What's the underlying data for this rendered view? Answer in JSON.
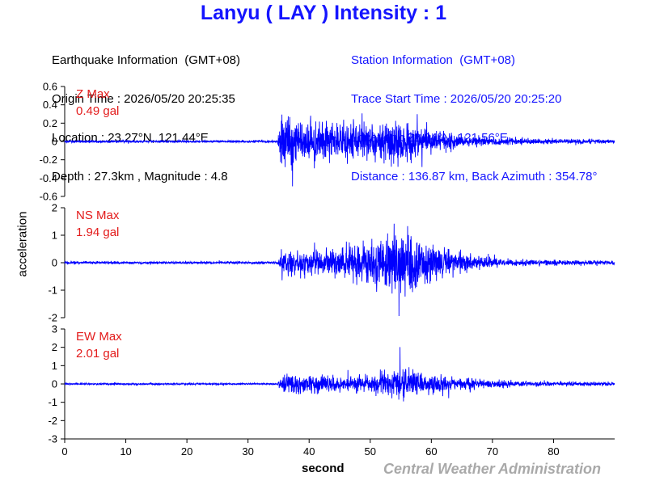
{
  "header": {
    "title": "Lanyu ( LAY ) Intensity : 1"
  },
  "earthquake_info": {
    "heading": "Earthquake Information  (GMT+08)",
    "origin_time": "Origin Time : 2026/05/20 20:25:35",
    "location": "Location : 23.27°N, 121.44°E",
    "depth_magnitude": "Depth : 27.3km , Magnitude : 4.8"
  },
  "station_info": {
    "heading": "Station Information  (GMT+08)",
    "trace_start": "Trace Start Time : 2026/05/20 20:25:20",
    "location": "Location : 22.04°N, 121.56°E",
    "distance": "Distance : 136.87 km, Back Azimuth : 354.78°"
  },
  "footer": {
    "credit": "Central Weather Administration"
  },
  "colors": {
    "trace": "#0000ff",
    "title": "#1515ff",
    "max_label": "#e31b1b",
    "credit": "#a9a9a9"
  },
  "chart_data": {
    "type": "line",
    "xlabel": "second",
    "ylabel": "acceleration",
    "xlim": [
      0,
      90
    ],
    "x_ticks": [
      0,
      10,
      20,
      30,
      40,
      50,
      60,
      70,
      80
    ],
    "signal_onset_s": 35,
    "panels": [
      {
        "name": "Z",
        "max_label": "Z Max",
        "max_value": "0.49 gal",
        "peak": 0.49,
        "ylim": [
          -0.6,
          0.6
        ],
        "y_ticks": [
          -0.6,
          -0.4,
          -0.2,
          0,
          0.2,
          0.4,
          0.6
        ],
        "envelope": [
          [
            0,
            0.012
          ],
          [
            34.8,
            0.012
          ],
          [
            35.5,
            0.3
          ],
          [
            38,
            0.2
          ],
          [
            45,
            0.17
          ],
          [
            50,
            0.18
          ],
          [
            55,
            0.2
          ],
          [
            60,
            0.1
          ],
          [
            65,
            0.055
          ],
          [
            70,
            0.035
          ],
          [
            80,
            0.025
          ],
          [
            90,
            0.02
          ]
        ]
      },
      {
        "name": "NS",
        "max_label": "NS Max",
        "max_value": "1.94 gal",
        "peak": 1.94,
        "ylim": [
          -2,
          2
        ],
        "y_ticks": [
          -2,
          -1,
          0,
          1,
          2
        ],
        "envelope": [
          [
            0,
            0.04
          ],
          [
            34.8,
            0.04
          ],
          [
            35.5,
            0.4
          ],
          [
            40,
            0.35
          ],
          [
            45,
            0.45
          ],
          [
            50,
            0.7
          ],
          [
            55,
            1.1
          ],
          [
            58,
            0.9
          ],
          [
            62,
            0.45
          ],
          [
            66,
            0.25
          ],
          [
            72,
            0.12
          ],
          [
            80,
            0.08
          ],
          [
            90,
            0.07
          ]
        ]
      },
      {
        "name": "EW",
        "max_label": "EW Max",
        "max_value": "2.01 gal",
        "peak": 2.01,
        "ylim": [
          -3,
          3
        ],
        "y_ticks": [
          -3,
          -2,
          -1,
          0,
          1,
          2,
          3
        ],
        "envelope": [
          [
            0,
            0.04
          ],
          [
            34.8,
            0.04
          ],
          [
            35.5,
            0.45
          ],
          [
            40,
            0.4
          ],
          [
            45,
            0.35
          ],
          [
            50,
            0.5
          ],
          [
            55,
            0.75
          ],
          [
            60,
            0.45
          ],
          [
            65,
            0.3
          ],
          [
            70,
            0.18
          ],
          [
            80,
            0.1
          ],
          [
            90,
            0.08
          ]
        ]
      }
    ]
  }
}
